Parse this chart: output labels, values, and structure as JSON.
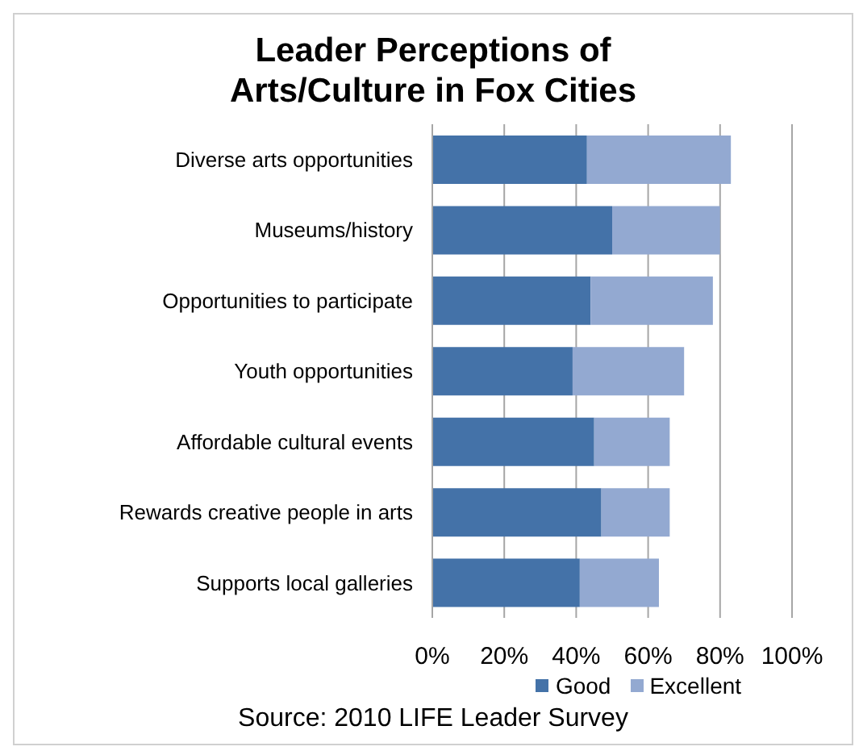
{
  "chart_data": {
    "type": "bar",
    "orientation": "horizontal",
    "stacked": true,
    "title": "Leader Perceptions of Arts/Culture in Fox Cities",
    "categories": [
      "Diverse arts opportunities",
      "Museums/history",
      "Opportunities to participate",
      "Youth opportunities",
      "Affordable cultural events",
      "Rewards creative people in arts",
      "Supports local galleries"
    ],
    "series": [
      {
        "name": "Good",
        "color": "#4472a8",
        "values": [
          43,
          50,
          44,
          39,
          45,
          47,
          41
        ]
      },
      {
        "name": "Excellent",
        "color": "#93a9d1",
        "values": [
          40,
          30,
          34,
          31,
          21,
          19,
          22
        ]
      }
    ],
    "xlim": [
      0,
      100
    ],
    "xticks": [
      {
        "value": 0,
        "label": "0%"
      },
      {
        "value": 20,
        "label": "20%"
      },
      {
        "value": 40,
        "label": "40%"
      },
      {
        "value": 60,
        "label": "60%"
      },
      {
        "value": 80,
        "label": "80%"
      },
      {
        "value": 100,
        "label": "100%"
      }
    ],
    "grid": "x",
    "legend": "bottom",
    "annotations": [
      "Source:  2010 LIFE Leader Survey"
    ]
  }
}
